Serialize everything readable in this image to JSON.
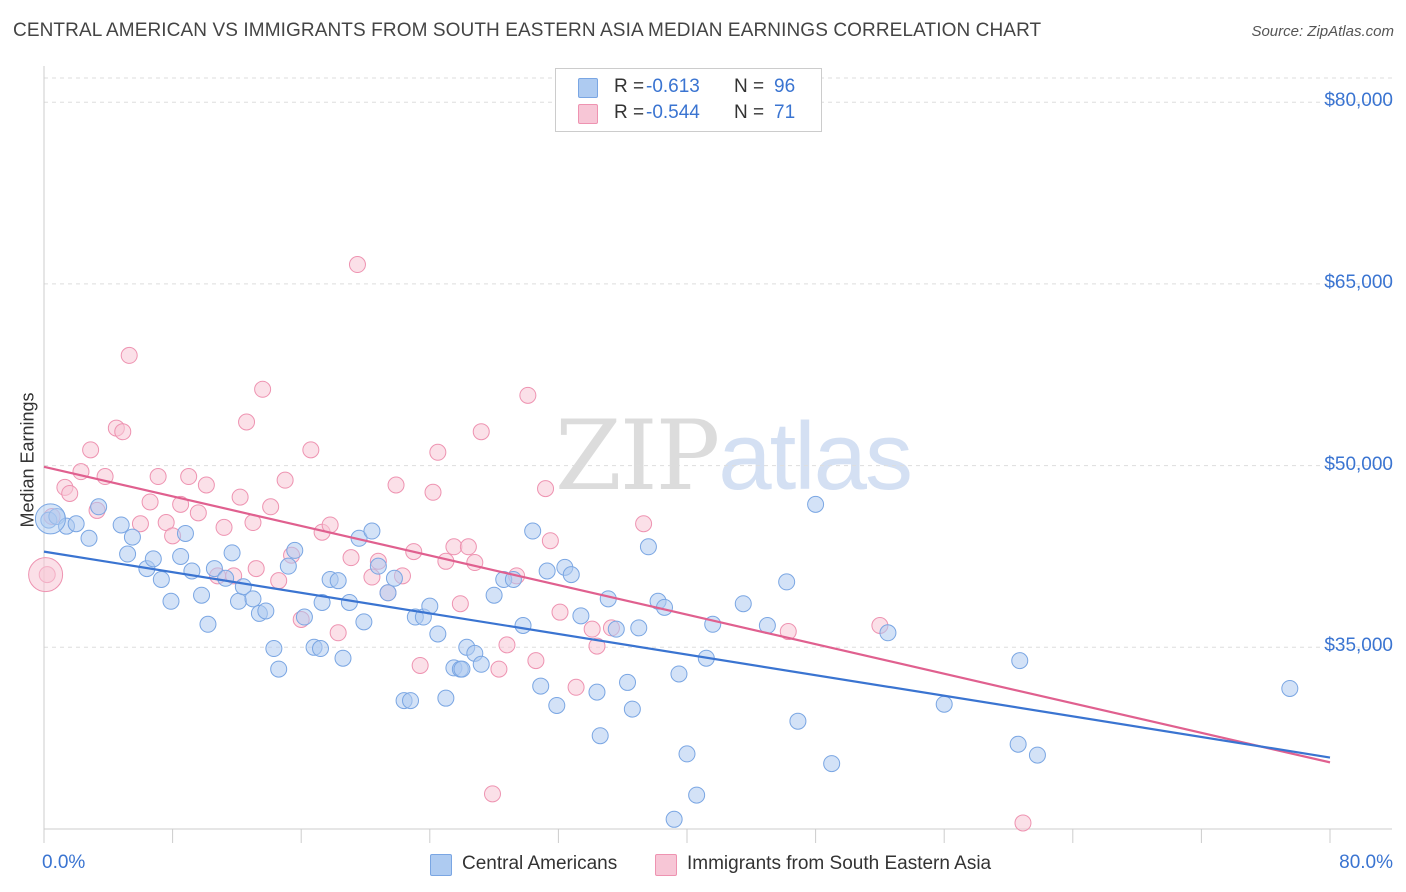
{
  "title": "CENTRAL AMERICAN VS IMMIGRANTS FROM SOUTH EASTERN ASIA MEDIAN EARNINGS CORRELATION CHART",
  "source": "Source: ZipAtlas.com",
  "watermark": {
    "zip": "ZIP",
    "atlas": "atlas"
  },
  "legend": {
    "r_label": "R =",
    "n_label": "N =",
    "rows": [
      {
        "r": "-0.613",
        "n": "96",
        "color": "#aecbf1",
        "border": "#7aa6e3"
      },
      {
        "r": "-0.544",
        "n": "71",
        "color": "#f7c6d6",
        "border": "#ee93b1"
      }
    ]
  },
  "bottom_legend": [
    {
      "label": "Central Americans",
      "color": "#aecbf1",
      "border": "#7aa6e3"
    },
    {
      "label": "Immigrants from South Eastern Asia",
      "color": "#f7c6d6",
      "border": "#ee93b1"
    }
  ],
  "colors": {
    "blue": "#3a74d1",
    "blue_fill": "#aecbf1",
    "pink": "#e0608f",
    "pink_fill": "#f7c6d6",
    "grid": "#dddddd",
    "tick_text": "#3a74d1"
  },
  "chart_data": {
    "type": "scatter",
    "title": "CENTRAL AMERICAN VS IMMIGRANTS FROM SOUTH EASTERN ASIA MEDIAN EARNINGS CORRELATION CHART",
    "xlabel": "",
    "ylabel": "Median Earnings",
    "xlim": [
      0,
      80
    ],
    "ylim": [
      20000,
      82000
    ],
    "x_tick_labels": [
      "0.0%",
      "80.0%"
    ],
    "y_ticks": [
      35000,
      50000,
      65000,
      80000
    ],
    "y_tick_labels": [
      "$35,000",
      "$50,000",
      "$65,000",
      "$80,000"
    ],
    "grid": true,
    "legend_position": "top-center",
    "series": [
      {
        "name": "Central Americans",
        "color": "#3a74d1",
        "trend": {
          "x": [
            0,
            80
          ],
          "y": [
            42900,
            25900
          ]
        },
        "points": [
          [
            0.3,
            45.5
          ],
          [
            0.8,
            45.8
          ],
          [
            1.4,
            45.0
          ],
          [
            2.0,
            45.2
          ],
          [
            2.8,
            44.0
          ],
          [
            3.4,
            46.6
          ],
          [
            4.8,
            45.1
          ],
          [
            5.2,
            42.7
          ],
          [
            5.5,
            44.1
          ],
          [
            6.4,
            41.5
          ],
          [
            6.8,
            42.3
          ],
          [
            7.3,
            40.6
          ],
          [
            7.9,
            38.8
          ],
          [
            8.5,
            42.5
          ],
          [
            8.8,
            44.4
          ],
          [
            9.2,
            41.3
          ],
          [
            9.8,
            39.3
          ],
          [
            10.2,
            36.9
          ],
          [
            10.6,
            41.5
          ],
          [
            11.3,
            40.7
          ],
          [
            11.7,
            42.8
          ],
          [
            12.1,
            38.8
          ],
          [
            12.4,
            40.0
          ],
          [
            13.0,
            39.0
          ],
          [
            13.4,
            37.8
          ],
          [
            13.8,
            38.0
          ],
          [
            14.3,
            34.9
          ],
          [
            14.6,
            33.2
          ],
          [
            15.2,
            41.7
          ],
          [
            15.6,
            43.0
          ],
          [
            16.2,
            37.5
          ],
          [
            16.8,
            35.0
          ],
          [
            17.3,
            38.7
          ],
          [
            17.8,
            40.6
          ],
          [
            18.6,
            34.1
          ],
          [
            19.0,
            38.7
          ],
          [
            19.6,
            44.0
          ],
          [
            19.9,
            37.1
          ],
          [
            20.4,
            44.6
          ],
          [
            20.8,
            41.7
          ],
          [
            21.4,
            39.5
          ],
          [
            21.8,
            40.7
          ],
          [
            22.4,
            30.6
          ],
          [
            22.8,
            30.6
          ],
          [
            23.1,
            37.5
          ],
          [
            23.6,
            37.5
          ],
          [
            24.0,
            38.4
          ],
          [
            24.5,
            36.1
          ],
          [
            25.0,
            30.8
          ],
          [
            25.5,
            33.3
          ],
          [
            25.9,
            33.2
          ],
          [
            26.3,
            35.0
          ],
          [
            26.8,
            34.5
          ],
          [
            27.2,
            33.6
          ],
          [
            28.0,
            39.3
          ],
          [
            28.6,
            40.6
          ],
          [
            29.2,
            40.6
          ],
          [
            29.8,
            36.8
          ],
          [
            30.4,
            44.6
          ],
          [
            30.9,
            31.8
          ],
          [
            31.3,
            41.3
          ],
          [
            31.9,
            30.2
          ],
          [
            32.4,
            41.6
          ],
          [
            32.8,
            41.0
          ],
          [
            33.4,
            37.6
          ],
          [
            34.4,
            31.3
          ],
          [
            34.6,
            27.7
          ],
          [
            35.1,
            39.0
          ],
          [
            35.6,
            36.5
          ],
          [
            36.3,
            32.1
          ],
          [
            36.6,
            29.9
          ],
          [
            37.0,
            36.6
          ],
          [
            37.6,
            43.3
          ],
          [
            38.2,
            38.8
          ],
          [
            38.6,
            38.3
          ],
          [
            39.5,
            32.8
          ],
          [
            40.0,
            26.2
          ],
          [
            40.6,
            22.8
          ],
          [
            41.2,
            34.1
          ],
          [
            41.6,
            36.9
          ],
          [
            43.5,
            38.6
          ],
          [
            45.0,
            36.8
          ],
          [
            46.2,
            40.4
          ],
          [
            46.9,
            28.9
          ],
          [
            48.0,
            46.8
          ],
          [
            49.0,
            25.4
          ],
          [
            52.5,
            36.2
          ],
          [
            56.0,
            30.3
          ],
          [
            60.7,
            33.9
          ],
          [
            60.6,
            27.0
          ],
          [
            61.8,
            26.1
          ],
          [
            77.5,
            31.6
          ],
          [
            39.2,
            20.8
          ],
          [
            26.0,
            33.2
          ],
          [
            17.2,
            34.9
          ],
          [
            18.3,
            40.5
          ]
        ]
      },
      {
        "name": "Immigrants from South Eastern Asia",
        "color": "#e0608f",
        "trend": {
          "x": [
            0,
            80
          ],
          "y": [
            49900,
            25500
          ]
        },
        "points": [
          [
            0.2,
            41.0
          ],
          [
            0.5,
            45.8
          ],
          [
            1.3,
            48.2
          ],
          [
            1.6,
            47.7
          ],
          [
            2.3,
            49.5
          ],
          [
            2.9,
            51.3
          ],
          [
            3.3,
            46.3
          ],
          [
            3.8,
            49.1
          ],
          [
            4.5,
            53.1
          ],
          [
            4.9,
            52.8
          ],
          [
            5.3,
            59.1
          ],
          [
            6.0,
            45.2
          ],
          [
            6.6,
            47.0
          ],
          [
            7.1,
            49.1
          ],
          [
            7.6,
            45.3
          ],
          [
            8.0,
            44.2
          ],
          [
            8.5,
            46.8
          ],
          [
            9.0,
            49.1
          ],
          [
            9.6,
            46.1
          ],
          [
            10.1,
            48.4
          ],
          [
            10.8,
            40.9
          ],
          [
            11.2,
            44.9
          ],
          [
            11.8,
            40.9
          ],
          [
            12.2,
            47.4
          ],
          [
            12.6,
            53.6
          ],
          [
            13.0,
            45.3
          ],
          [
            13.6,
            56.3
          ],
          [
            14.1,
            46.6
          ],
          [
            14.6,
            40.5
          ],
          [
            15.0,
            48.8
          ],
          [
            15.4,
            42.6
          ],
          [
            16.0,
            37.3
          ],
          [
            16.6,
            51.3
          ],
          [
            17.3,
            44.5
          ],
          [
            17.8,
            45.1
          ],
          [
            18.3,
            36.2
          ],
          [
            19.1,
            42.4
          ],
          [
            19.5,
            66.6
          ],
          [
            20.4,
            40.8
          ],
          [
            20.8,
            42.1
          ],
          [
            21.4,
            39.5
          ],
          [
            21.9,
            48.4
          ],
          [
            22.3,
            40.9
          ],
          [
            23.0,
            42.9
          ],
          [
            23.4,
            33.5
          ],
          [
            24.2,
            47.8
          ],
          [
            24.5,
            51.1
          ],
          [
            25.0,
            42.1
          ],
          [
            25.5,
            43.3
          ],
          [
            25.9,
            38.6
          ],
          [
            26.4,
            43.3
          ],
          [
            26.8,
            42.0
          ],
          [
            27.2,
            52.8
          ],
          [
            27.9,
            22.9
          ],
          [
            28.3,
            33.2
          ],
          [
            28.8,
            35.2
          ],
          [
            29.4,
            40.9
          ],
          [
            30.1,
            55.8
          ],
          [
            30.6,
            33.9
          ],
          [
            31.2,
            48.1
          ],
          [
            31.5,
            43.8
          ],
          [
            32.1,
            37.9
          ],
          [
            33.1,
            31.7
          ],
          [
            34.1,
            36.5
          ],
          [
            34.4,
            35.1
          ],
          [
            35.3,
            36.6
          ],
          [
            37.3,
            45.2
          ],
          [
            46.3,
            36.3
          ],
          [
            52.0,
            36.8
          ],
          [
            60.9,
            20.5
          ],
          [
            13.2,
            41.5
          ]
        ]
      }
    ]
  }
}
